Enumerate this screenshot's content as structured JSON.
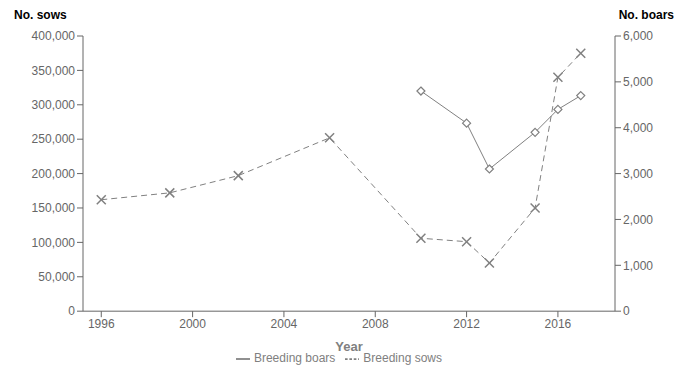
{
  "chart_data": {
    "type": "line",
    "xlabel": "Year",
    "ylabel": "No. sows",
    "y2label": "No. boars",
    "xlim": [
      1995.2,
      2018.5
    ],
    "xticks": [
      1996,
      2000,
      2004,
      2008,
      2012,
      2016
    ],
    "ylim": [
      0,
      400000
    ],
    "yticks": [
      0,
      {
        "value": 50000,
        "label": "50,000"
      },
      {
        "value": 100000,
        "label": "100,000"
      },
      {
        "value": 150000,
        "label": "150,000"
      },
      {
        "value": 200000,
        "label": "200,000"
      },
      {
        "value": 250000,
        "label": "250,000"
      },
      {
        "value": 300000,
        "label": "300,000"
      },
      {
        "value": 350000,
        "label": "350,000"
      },
      {
        "value": 400000,
        "label": "400,000"
      }
    ],
    "y2lim": [
      0,
      6000
    ],
    "y2ticks": [
      0,
      {
        "value": 1000,
        "label": "1,000"
      },
      {
        "value": 2000,
        "label": "2,000"
      },
      {
        "value": 3000,
        "label": "3,000"
      },
      {
        "value": 4000,
        "label": "4,000"
      },
      {
        "value": 5000,
        "label": "5,000"
      },
      {
        "value": 6000,
        "label": "6,000"
      }
    ],
    "grid": false,
    "legend": "bottom",
    "series": [
      {
        "name": "Breeding sows",
        "color": "#808080",
        "line_style": "dashed",
        "marker": "x",
        "x": [
          1996,
          1999,
          2002,
          2006,
          2010,
          2012,
          2013,
          2015,
          2016,
          2017
        ],
        "values": [
          162000,
          172000,
          197000,
          252000,
          106000,
          101000,
          70000,
          150000,
          340000,
          375000
        ]
      },
      {
        "name": "Breeding boars",
        "color": "#808080",
        "line_style": "solid",
        "marker": "diamond",
        "axis": "y2",
        "x": [
          2010,
          2012,
          2013,
          2015,
          2016,
          2017
        ],
        "values": [
          4800,
          4100,
          3100,
          3900,
          4400,
          4700
        ]
      }
    ]
  }
}
